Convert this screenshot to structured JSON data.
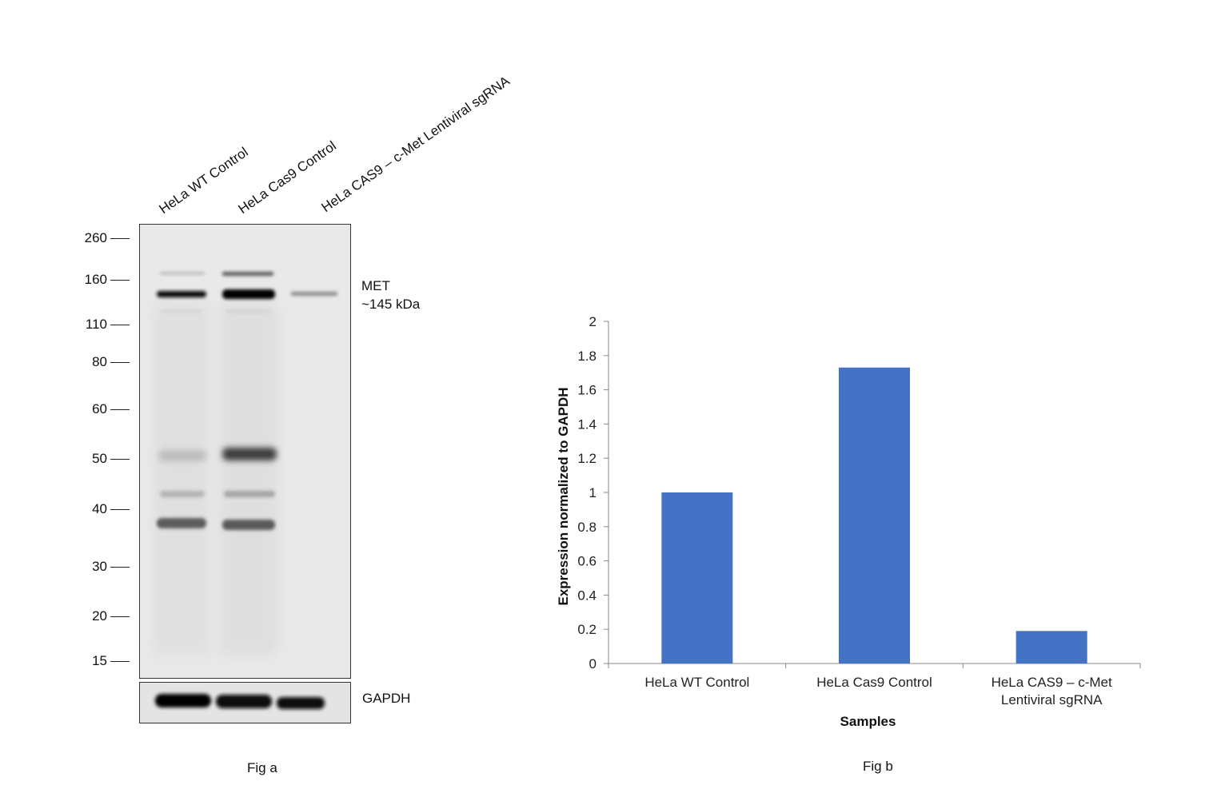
{
  "figure_a": {
    "caption": "Fig a",
    "lanes": [
      "HeLa WT Control",
      "HeLa Cas9 Control",
      "HeLa CAS9 – c-Met Lentiviral sgRNA"
    ],
    "markers": [
      "260",
      "160",
      "110",
      "80",
      "60",
      "50",
      "40",
      "30",
      "20",
      "15"
    ],
    "band_label_line1": "MET",
    "band_label_line2": "~145 kDa",
    "loading_control_label": "GAPDH"
  },
  "figure_b": {
    "caption": "Fig b"
  },
  "chart_data": {
    "type": "bar",
    "categories": [
      "HeLa WT Control",
      "HeLa Cas9 Control",
      "HeLa CAS9 – c-Met Lentiviral sgRNA"
    ],
    "category_lines": [
      [
        "HeLa WT Control"
      ],
      [
        "HeLa Cas9 Control"
      ],
      [
        "HeLa CAS9 – c-Met",
        "Lentiviral sgRNA"
      ]
    ],
    "values": [
      1.0,
      1.73,
      0.19
    ],
    "xlabel": "Samples",
    "ylabel": "Expression normalized to GAPDH",
    "ylim": [
      0,
      2
    ],
    "yticks": [
      "0",
      "0.2",
      "0.4",
      "0.6",
      "0.8",
      "1",
      "1.2",
      "1.4",
      "1.6",
      "1.8",
      "2"
    ],
    "grid": false,
    "bar_color": "#4472C4"
  }
}
